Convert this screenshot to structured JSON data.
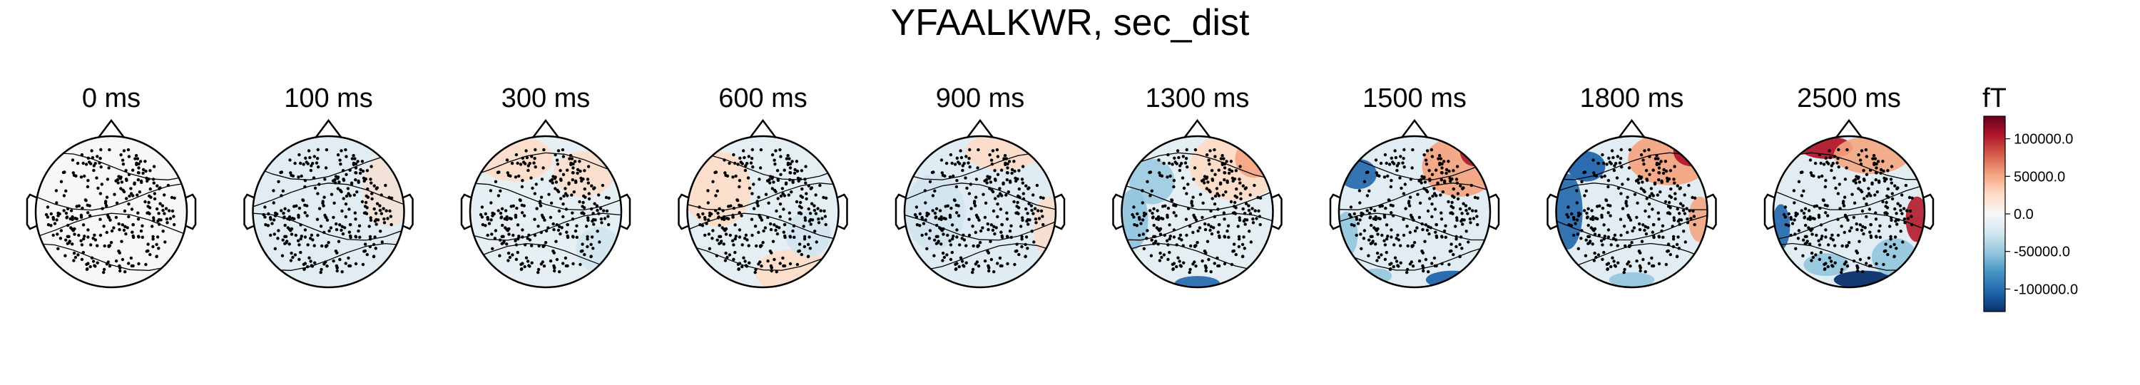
{
  "chart_data": {
    "type": "heatmap",
    "title": "YFAALKWR, sec_dist",
    "panels": [
      {
        "time": "0 ms"
      },
      {
        "time": "100 ms"
      },
      {
        "time": "300 ms"
      },
      {
        "time": "600 ms"
      },
      {
        "time": "900 ms"
      },
      {
        "time": "1300 ms"
      },
      {
        "time": "1500 ms"
      },
      {
        "time": "1800 ms"
      },
      {
        "time": "2500 ms"
      }
    ],
    "colorbar": {
      "unit": "fT",
      "range": [
        -130000,
        130000
      ],
      "ticks": [
        100000.0,
        50000.0,
        0.0,
        -50000.0,
        -100000.0
      ],
      "tick_labels": [
        "100000.0",
        "50000.0",
        "0.0",
        "-50000.0",
        "-100000.0"
      ],
      "colormap": "RdBu_r",
      "colors": [
        "#08306b",
        "#2166ac",
        "#4393c3",
        "#92c5de",
        "#d1e5f0",
        "#f7f7f7",
        "#fddbc7",
        "#f4a582",
        "#d6604d",
        "#b2182b",
        "#67001f"
      ]
    }
  }
}
